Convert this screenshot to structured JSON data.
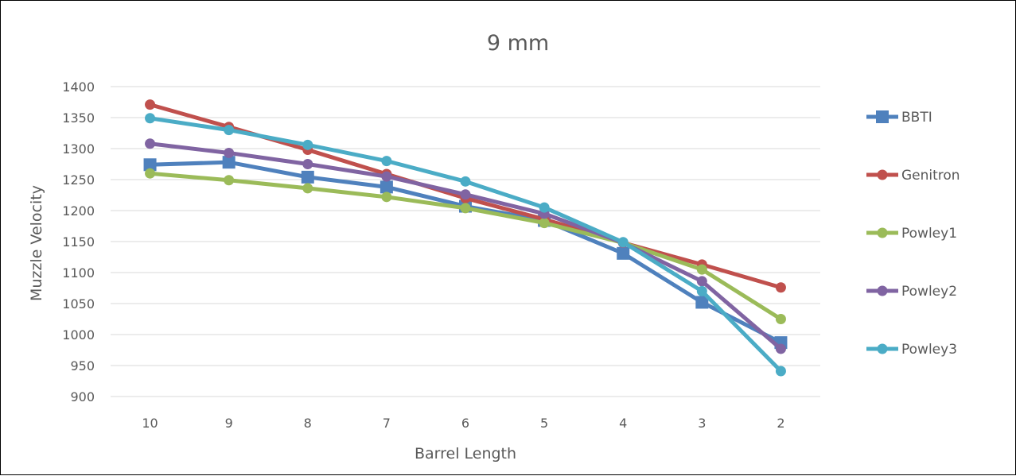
{
  "chart_data": {
    "type": "line",
    "title": "9 mm",
    "xlabel": "Barrel Length",
    "ylabel": "Muzzle Velocity",
    "categories": [
      "10",
      "9",
      "8",
      "7",
      "6",
      "5",
      "4",
      "3",
      "2"
    ],
    "ylim": [
      900,
      1400
    ],
    "yticks": [
      900,
      950,
      1000,
      1050,
      1100,
      1150,
      1200,
      1250,
      1300,
      1350,
      1400
    ],
    "grid": true,
    "legend": "right",
    "series": [
      {
        "name": "BBTI",
        "color": "#4f81bd",
        "marker": "square",
        "values": [
          1274,
          1278,
          1254,
          1238,
          1207,
          1184,
          1131,
          1052,
          987
        ]
      },
      {
        "name": "Genitron",
        "color": "#c0504d",
        "marker": "circle",
        "values": [
          1371,
          1335,
          1298,
          1259,
          1220,
          1186,
          1148,
          1113,
          1076
        ]
      },
      {
        "name": "Powley1",
        "color": "#9bbb59",
        "marker": "circle",
        "values": [
          1260,
          1249,
          1236,
          1222,
          1204,
          1180,
          1148,
          1105,
          1025
        ]
      },
      {
        "name": "Powley2",
        "color": "#8064a2",
        "marker": "circle",
        "values": [
          1308,
          1293,
          1275,
          1255,
          1226,
          1195,
          1148,
          1086,
          977
        ]
      },
      {
        "name": "Powley3",
        "color": "#4bacc6",
        "marker": "circle",
        "values": [
          1349,
          1330,
          1306,
          1280,
          1247,
          1205,
          1149,
          1070,
          941
        ]
      }
    ]
  }
}
